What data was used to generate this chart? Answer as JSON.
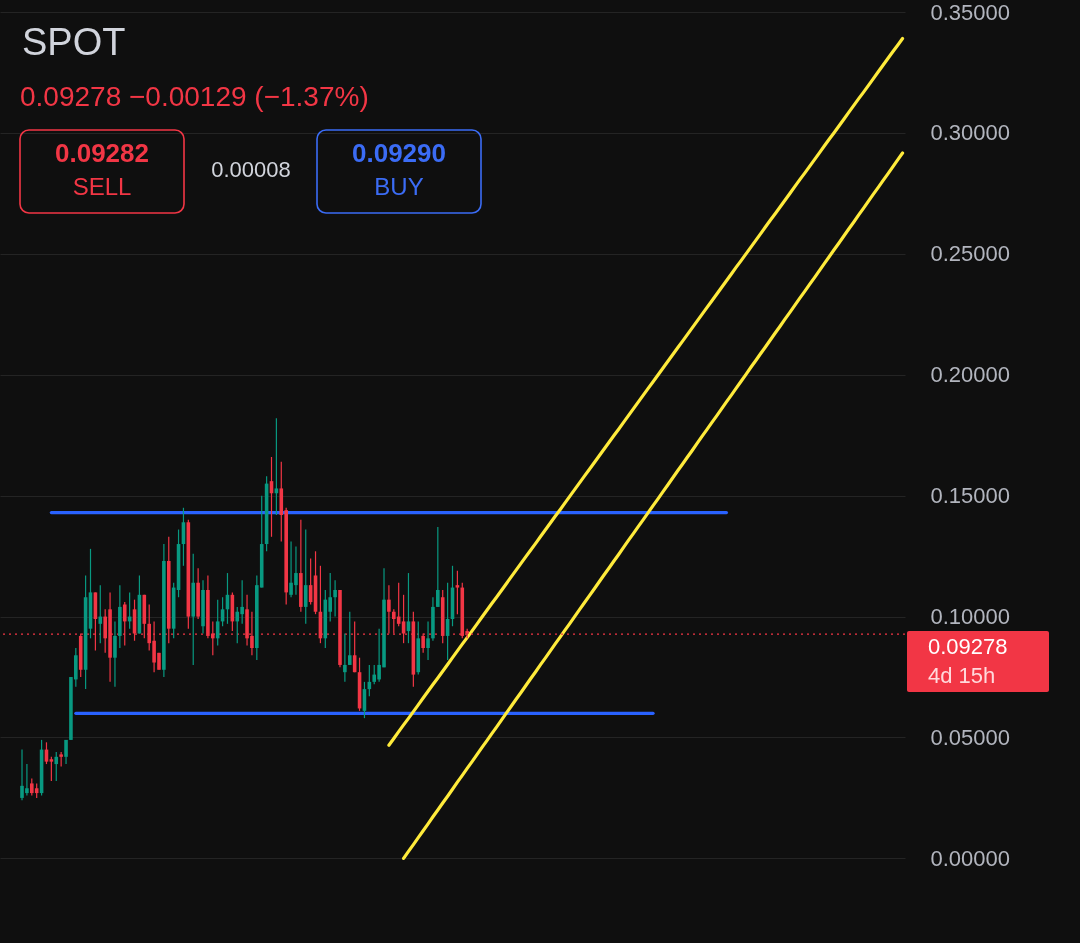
{
  "chart_data": {
    "type": "candlestick",
    "title": "SPOT",
    "subtitle": "0.09278  −0.00129 (−1.37%)",
    "categories": [
      null,
      null,
      null,
      null,
      null,
      null,
      null,
      null,
      null,
      null,
      null,
      null,
      null,
      null,
      null,
      null,
      null,
      null,
      null,
      null,
      null,
      null,
      null,
      null,
      null,
      null,
      null,
      null,
      null,
      null,
      null,
      null,
      null,
      null,
      null,
      null,
      null,
      null,
      null,
      null,
      null,
      null,
      null,
      null,
      null,
      null,
      null,
      null,
      null,
      null,
      null,
      null,
      null,
      null,
      null,
      null,
      null,
      null,
      null,
      null,
      null,
      null,
      null,
      null,
      null,
      null,
      null,
      null,
      null,
      null,
      null,
      null,
      null,
      null,
      null,
      null,
      null,
      null,
      null,
      null,
      null,
      null,
      null,
      null,
      null,
      null,
      null,
      null,
      null,
      null,
      null,
      null,
      null,
      null,
      null,
      null,
      null,
      null,
      null,
      null,
      null,
      null,
      null,
      null,
      null,
      null,
      null,
      null,
      null,
      null,
      null,
      null,
      null,
      null,
      null,
      null,
      null,
      null,
      null,
      null,
      null,
      null,
      null,
      null,
      null,
      null,
      null,
      null,
      null,
      null,
      null,
      null,
      null,
      null,
      null,
      null,
      null,
      null,
      null,
      null,
      null,
      null,
      null,
      null,
      null,
      null,
      null,
      null,
      null,
      null,
      null,
      null,
      null,
      null,
      null,
      null,
      null,
      null,
      null,
      null,
      null,
      null,
      null,
      null,
      null,
      null,
      null,
      null,
      null,
      null,
      null,
      null,
      null,
      null,
      null,
      null,
      null,
      null,
      null,
      null,
      null,
      null,
      null,
      null,
      null
    ],
    "ohlc": [
      null,
      null,
      null,
      null,
      [
        0.025,
        0.045,
        0.024,
        0.03
      ],
      [
        0.027,
        0.039,
        0.026,
        0.029
      ],
      [
        0.031,
        0.033,
        0.026,
        0.027
      ],
      [
        0.029,
        0.031,
        0.025,
        0.027
      ],
      [
        0.027,
        0.049,
        0.026,
        0.045
      ],
      [
        0.045,
        0.048,
        0.039,
        0.04
      ],
      [
        0.041,
        0.042,
        0.032,
        0.04
      ],
      [
        0.039,
        0.044,
        0.032,
        0.042
      ],
      [
        0.043,
        0.044,
        0.038,
        0.042
      ],
      [
        0.042,
        0.049,
        0.039,
        0.049
      ],
      [
        0.049,
        0.075,
        0.049,
        0.075
      ],
      [
        0.074,
        0.087,
        0.071,
        0.084
      ],
      [
        0.092,
        0.093,
        0.075,
        0.078
      ],
      [
        0.078,
        0.117,
        0.07,
        0.108
      ],
      [
        0.095,
        0.128,
        0.091,
        0.11
      ],
      [
        0.11,
        0.11,
        0.086,
        0.099
      ],
      [
        0.097,
        0.113,
        0.089,
        0.1
      ],
      [
        0.1,
        0.103,
        0.085,
        0.091
      ],
      [
        0.103,
        0.11,
        0.073,
        0.083
      ],
      [
        0.083,
        0.098,
        0.071,
        0.092
      ],
      [
        0.092,
        0.113,
        0.087,
        0.104
      ],
      [
        0.105,
        0.106,
        0.088,
        0.098
      ],
      [
        0.098,
        0.11,
        0.095,
        0.1
      ],
      [
        0.103,
        0.107,
        0.09,
        0.093
      ],
      [
        0.093,
        0.117,
        0.093,
        0.109
      ],
      [
        0.109,
        0.109,
        0.091,
        0.097
      ],
      [
        0.097,
        0.105,
        0.086,
        0.089
      ],
      [
        0.09,
        0.098,
        0.077,
        0.081
      ],
      [
        0.085,
        0.085,
        0.078,
        0.078
      ],
      [
        0.078,
        0.13,
        0.075,
        0.123
      ],
      [
        0.123,
        0.133,
        0.089,
        0.095
      ],
      [
        0.095,
        0.114,
        0.091,
        0.112
      ],
      [
        0.111,
        0.136,
        0.108,
        0.13
      ],
      [
        0.13,
        0.145,
        0.121,
        0.139
      ],
      [
        0.139,
        0.14,
        0.095,
        0.1
      ],
      [
        0.1,
        0.126,
        0.08,
        0.114
      ],
      [
        0.114,
        0.12,
        0.099,
        0.1
      ],
      [
        0.096,
        0.115,
        0.093,
        0.111
      ],
      [
        0.111,
        0.117,
        0.091,
        0.092
      ],
      [
        0.093,
        0.098,
        0.084,
        0.091
      ],
      [
        0.091,
        0.107,
        0.088,
        0.098
      ],
      [
        0.098,
        0.108,
        0.096,
        0.103
      ],
      [
        0.103,
        0.118,
        0.097,
        0.109
      ],
      [
        0.109,
        0.11,
        0.094,
        0.098
      ],
      [
        0.098,
        0.104,
        0.089,
        0.102
      ],
      [
        0.101,
        0.115,
        0.097,
        0.104
      ],
      [
        0.103,
        0.109,
        0.088,
        0.091
      ],
      [
        0.092,
        0.102,
        0.084,
        0.087
      ],
      [
        0.087,
        0.117,
        0.082,
        0.113
      ],
      [
        0.112,
        0.15,
        0.112,
        0.13
      ],
      [
        0.13,
        0.158,
        0.127,
        0.155
      ],
      [
        0.156,
        0.166,
        0.133,
        0.151
      ],
      [
        0.151,
        0.182,
        0.142,
        0.153
      ],
      [
        0.153,
        0.164,
        0.131,
        0.142
      ],
      [
        0.144,
        0.145,
        0.105,
        0.11
      ],
      [
        0.109,
        0.131,
        0.108,
        0.114
      ],
      [
        0.113,
        0.129,
        0.109,
        0.118
      ],
      [
        0.118,
        0.14,
        0.102,
        0.104
      ],
      [
        0.104,
        0.136,
        0.097,
        0.113
      ],
      [
        0.113,
        0.124,
        0.105,
        0.106
      ],
      [
        0.117,
        0.127,
        0.101,
        0.102
      ],
      [
        0.102,
        0.121,
        0.089,
        0.091
      ],
      [
        0.091,
        0.111,
        0.087,
        0.107
      ],
      [
        0.102,
        0.118,
        0.098,
        0.108
      ],
      [
        0.108,
        0.115,
        0.1,
        0.111
      ],
      [
        0.111,
        0.111,
        0.079,
        0.08
      ],
      [
        0.077,
        0.093,
        0.073,
        0.08
      ],
      [
        0.08,
        0.102,
        0.08,
        0.084
      ],
      [
        0.084,
        0.098,
        0.077,
        0.077
      ],
      [
        0.077,
        0.083,
        0.061,
        0.062
      ],
      [
        0.061,
        0.073,
        0.058,
        0.07
      ],
      [
        0.07,
        0.08,
        0.067,
        0.073
      ],
      [
        0.073,
        0.08,
        0.072,
        0.076
      ],
      [
        0.074,
        0.095,
        0.073,
        0.08
      ],
      [
        0.079,
        0.12,
        0.079,
        0.107
      ],
      [
        0.107,
        0.113,
        0.093,
        0.102
      ],
      [
        0.102,
        0.103,
        0.093,
        0.099
      ],
      [
        0.1,
        0.114,
        0.096,
        0.097
      ],
      [
        0.098,
        0.109,
        0.089,
        0.093
      ],
      [
        0.094,
        0.118,
        0.089,
        0.098
      ],
      [
        0.098,
        0.102,
        0.071,
        0.076
      ],
      [
        0.077,
        0.098,
        0.076,
        0.091
      ],
      [
        0.092,
        0.093,
        0.085,
        0.087
      ],
      [
        0.087,
        0.098,
        0.082,
        0.091
      ],
      [
        0.091,
        0.108,
        0.09,
        0.104
      ],
      [
        0.104,
        0.137,
        0.104,
        0.111
      ],
      [
        0.108,
        0.111,
        0.089,
        0.092
      ],
      [
        0.092,
        0.114,
        0.082,
        0.099
      ],
      [
        0.099,
        0.121,
        0.096,
        0.112
      ],
      [
        0.113,
        0.119,
        0.101,
        0.112
      ],
      [
        0.112,
        0.114,
        0.091,
        0.092
      ],
      [
        0.094,
        0.095,
        0.091,
        0.093
      ],
      null,
      null,
      null,
      null,
      null,
      null,
      null,
      null,
      null,
      null,
      null,
      null,
      null,
      null,
      null,
      null,
      null,
      null,
      null,
      null,
      null,
      null,
      null,
      null,
      null,
      null,
      null,
      null,
      null,
      null,
      null,
      null,
      null,
      null,
      null,
      null,
      null,
      null,
      null,
      null,
      null,
      null,
      null,
      null,
      null,
      null,
      null,
      null,
      null,
      null,
      null,
      null,
      null,
      null,
      null,
      null,
      null,
      null,
      null,
      null,
      null,
      null,
      null,
      null,
      null,
      null,
      null,
      null,
      null,
      null,
      null,
      null,
      null,
      null,
      null,
      null,
      null,
      null,
      null,
      null,
      null,
      null,
      null,
      null,
      null,
      null,
      null,
      null,
      null
    ],
    "colors": [
      null,
      null,
      null,
      null,
      "#089981",
      "#089981",
      "#f23645",
      "#f23645",
      "#089981",
      "#f23645",
      "#f23645",
      "#089981",
      "#f23645",
      "#089981",
      "#089981",
      "#089981",
      "#f23645",
      "#089981",
      "#089981",
      "#f23645",
      "#089981",
      "#f23645",
      "#f23645",
      "#089981",
      "#089981",
      "#f23645",
      "#089981",
      "#f23645",
      "#089981",
      "#f23645",
      "#f23645",
      "#f23645",
      "#f23645",
      "#089981",
      "#f23645",
      "#089981",
      "#089981",
      "#089981",
      "#f23645",
      "#089981",
      "#f23645",
      "#089981",
      "#f23645",
      "#f23645",
      "#089981",
      "#089981",
      "#089981",
      "#f23645",
      "#089981",
      "#089981",
      "#f23645",
      "#f23645",
      "#089981",
      "#089981",
      "#089981",
      "#f23645",
      "#089981",
      "#f23645",
      "#f23645",
      "#089981",
      "#089981",
      "#f23645",
      "#089981",
      "#f23645",
      "#f23645",
      "#f23645",
      "#089981",
      "#089981",
      "#089981",
      "#f23645",
      "#089981",
      "#089981",
      "#f23645",
      "#f23645",
      "#089981",
      "#089981",
      "#089981",
      "#089981",
      "#089981",
      "#f23645",
      "#f23645",
      "#f23645",
      "#f23645",
      "#089981",
      "#f23645",
      "#089981",
      "#f23645",
      "#089981",
      "#089981",
      "#089981",
      "#f23645",
      "#089981",
      "#089981",
      "#f23645",
      "#f23645",
      "#f23645",
      null,
      null,
      null,
      null,
      null,
      null,
      null,
      null,
      null,
      null,
      null,
      null,
      null,
      null,
      null,
      null,
      null,
      null,
      null,
      null,
      null,
      null,
      null,
      null,
      null,
      null,
      null,
      null,
      null,
      null,
      null,
      null,
      null,
      null,
      null,
      null,
      null,
      null,
      null,
      null,
      null,
      null,
      null,
      null,
      null,
      null,
      null,
      null,
      null,
      null,
      null,
      null,
      null,
      null,
      null,
      null,
      null,
      null,
      null,
      null,
      null,
      null,
      null,
      null,
      null,
      null,
      null,
      null,
      null,
      null,
      null,
      null,
      null,
      null,
      null,
      null,
      null,
      null,
      null,
      null,
      null,
      null,
      null,
      null,
      null,
      null,
      null,
      null,
      null
    ],
    "series": [
      {
        "type": "line",
        "color": "#2962ff",
        "values": [
          null,
          null,
          null,
          null,
          null,
          null,
          null,
          null,
          null,
          null,
          0.143,
          0.143,
          0.143,
          0.143,
          0.143,
          0.143,
          0.143,
          0.143,
          0.143,
          0.143,
          0.143,
          0.143,
          0.143,
          0.143,
          0.143,
          0.143,
          0.143,
          0.143,
          0.143,
          0.143,
          0.143,
          0.143,
          0.143,
          0.143,
          0.143,
          0.143,
          0.143,
          0.143,
          0.143,
          0.143,
          0.143,
          0.143,
          0.143,
          0.143,
          0.143,
          0.143,
          0.143,
          0.143,
          0.143,
          0.143,
          0.143,
          0.143,
          0.143,
          0.143,
          0.143,
          0.143,
          0.143,
          0.143,
          0.143,
          0.143,
          0.143,
          0.143,
          0.143,
          0.143,
          0.143,
          0.143,
          0.143,
          0.143,
          0.143,
          0.143,
          0.143,
          0.143,
          0.143,
          0.143,
          0.143,
          0.143,
          0.143,
          0.143,
          0.143,
          0.143,
          0.143,
          0.143,
          0.143,
          0.143,
          0.143,
          0.143,
          0.143,
          0.143,
          0.143,
          0.143,
          0.143,
          0.143,
          0.143,
          0.143,
          0.143,
          0.143,
          0.143,
          0.143,
          0.143,
          0.143,
          0.143,
          0.143,
          0.143,
          0.143,
          0.143,
          0.143,
          0.143,
          0.143,
          0.143,
          0.143,
          0.143,
          0.143,
          0.143,
          0.143,
          0.143,
          0.143,
          0.143,
          0.143,
          0.143,
          0.143,
          0.143,
          0.143,
          0.143,
          0.143,
          0.143,
          0.143,
          0.143,
          0.143,
          0.143,
          0.143,
          0.143,
          0.143,
          0.143,
          0.143,
          0.143,
          0.143,
          0.143,
          0.143,
          0.143,
          0.143,
          0.143,
          0.143,
          0.143,
          0.143,
          0.143,
          0.143,
          0.143,
          0.143,
          0.143,
          null,
          null,
          null,
          null,
          null,
          null,
          null,
          null,
          null,
          null,
          null,
          null,
          null,
          null,
          null,
          null,
          null,
          null,
          null,
          null,
          null,
          null,
          null,
          null,
          null,
          null,
          null,
          null,
          null,
          null,
          null,
          null,
          null,
          null,
          null,
          null
        ]
      },
      {
        "type": "line",
        "color": "#2962ff",
        "values": [
          null,
          null,
          null,
          null,
          null,
          null,
          null,
          null,
          null,
          null,
          null,
          null,
          null,
          null,
          null,
          0.06,
          0.06,
          0.06,
          0.06,
          0.06,
          0.06,
          0.06,
          0.06,
          0.06,
          0.06,
          0.06,
          0.06,
          0.06,
          0.06,
          0.06,
          0.06,
          0.06,
          0.06,
          0.06,
          0.06,
          0.06,
          0.06,
          0.06,
          0.06,
          0.06,
          0.06,
          0.06,
          0.06,
          0.06,
          0.06,
          0.06,
          0.06,
          0.06,
          0.06,
          0.06,
          0.06,
          0.06,
          0.06,
          0.06,
          0.06,
          0.06,
          0.06,
          0.06,
          0.06,
          0.06,
          0.06,
          0.06,
          0.06,
          0.06,
          0.06,
          0.06,
          0.06,
          0.06,
          0.06,
          0.06,
          0.06,
          0.06,
          0.06,
          0.06,
          0.06,
          0.06,
          0.06,
          0.06,
          0.06,
          0.06,
          0.06,
          0.06,
          0.06,
          0.06,
          0.06,
          0.06,
          0.06,
          0.06,
          0.06,
          0.06,
          0.06,
          0.06,
          0.06,
          0.06,
          0.06,
          0.06,
          0.06,
          0.06,
          0.06,
          0.06,
          0.06,
          0.06,
          0.06,
          0.06,
          0.06,
          0.06,
          0.06,
          0.06,
          0.06,
          0.06,
          0.06,
          0.06,
          0.06,
          0.06,
          0.06,
          0.06,
          0.06,
          0.06,
          0.06,
          0.06,
          0.06,
          0.06,
          0.06,
          0.06,
          0.06,
          0.06,
          0.06,
          0.06,
          0.06,
          0.06,
          0.06,
          0.06,
          0.06,
          0.06,
          null,
          null,
          null,
          null,
          null,
          null,
          null,
          null,
          null,
          null,
          null,
          null,
          null,
          null,
          null,
          null,
          null,
          null,
          null,
          null,
          null,
          null,
          null,
          null,
          null,
          null,
          null,
          null,
          null,
          null,
          null,
          null,
          null,
          null,
          null,
          null,
          null,
          null,
          null,
          null,
          null,
          null,
          null,
          null,
          null,
          null,
          null,
          null,
          null,
          null,
          null
        ]
      },
      {
        "type": "line",
        "color": "#ffeb3b",
        "values": [
          null,
          null,
          null,
          null,
          null,
          null,
          null,
          null,
          null,
          null,
          null,
          null,
          null,
          null,
          null,
          null,
          null,
          null,
          null,
          null,
          null,
          null,
          null,
          null,
          null,
          null,
          null,
          null,
          null,
          null,
          null,
          null,
          null,
          null,
          null,
          null,
          null,
          null,
          null,
          null,
          null,
          null,
          null,
          null,
          null,
          null,
          null,
          null,
          null,
          null,
          null,
          null,
          null,
          null,
          null,
          null,
          null,
          null,
          null,
          null,
          null,
          null,
          null,
          null,
          null,
          null,
          null,
          null,
          null,
          null,
          null,
          null,
          null,
          null,
          null,
          null,
          null,
          null,
          null,
          0.0468,
          0.0496,
          0.0524,
          0.0552,
          0.0579,
          0.0607,
          0.0635,
          0.0663,
          0.0691,
          0.0719,
          0.0746,
          0.0774,
          0.0802,
          0.083,
          0.0858,
          0.0886,
          0.0913,
          0.0941,
          0.0969,
          0.0997,
          0.1025,
          0.1053,
          0.108,
          0.1108,
          0.1136,
          0.1164,
          0.1192,
          0.122,
          0.1248,
          0.1275,
          0.1303,
          0.1331,
          0.1359,
          0.1387,
          0.1415,
          0.1442,
          0.147,
          0.1498,
          0.1526,
          0.1554,
          0.1582,
          0.1609,
          0.1637,
          0.1665,
          0.1693,
          0.1721,
          0.1749,
          0.1776,
          0.1804,
          0.1832,
          0.186,
          0.1888,
          0.1916,
          0.1944,
          0.1971,
          0.1999,
          0.2027,
          0.2055,
          0.2083,
          0.2111,
          0.2138,
          0.2166,
          0.2194,
          0.2222,
          0.225,
          0.2278,
          0.2305,
          0.2333,
          0.2361,
          0.2389,
          0.2417,
          0.2445,
          0.2472,
          0.25,
          0.2528,
          0.2556,
          0.2584,
          0.2612,
          0.264,
          0.2667,
          0.2695,
          0.2723,
          0.2751,
          0.2779,
          0.2807,
          0.2834,
          0.2862,
          0.289,
          0.2918,
          0.2946,
          0.2974,
          0.3001,
          0.3029,
          0.3057,
          0.3085,
          0.3113,
          0.3141,
          0.3168,
          0.3196,
          0.3224,
          0.3252,
          0.328,
          0.3308,
          0.3336,
          0.3363,
          0.3391
        ]
      },
      {
        "type": "line",
        "color": "#ffeb3b",
        "values": [
          null,
          null,
          null,
          null,
          null,
          null,
          null,
          null,
          null,
          null,
          null,
          null,
          null,
          null,
          null,
          null,
          null,
          null,
          null,
          null,
          null,
          null,
          null,
          null,
          null,
          null,
          null,
          null,
          null,
          null,
          null,
          null,
          null,
          null,
          null,
          null,
          null,
          null,
          null,
          null,
          null,
          null,
          null,
          null,
          null,
          null,
          null,
          null,
          null,
          null,
          null,
          null,
          null,
          null,
          null,
          null,
          null,
          null,
          null,
          null,
          null,
          null,
          null,
          null,
          null,
          null,
          null,
          null,
          null,
          null,
          null,
          null,
          null,
          null,
          null,
          null,
          null,
          null,
          null,
          null,
          null,
          null,
          0.0,
          0.0029,
          0.0057,
          0.0086,
          0.0114,
          0.0143,
          0.0172,
          0.02,
          0.0229,
          0.0257,
          0.0286,
          0.0315,
          0.0343,
          0.0372,
          0.04,
          0.0429,
          0.0458,
          0.0486,
          0.0515,
          0.0543,
          0.0572,
          0.0601,
          0.0629,
          0.0658,
          0.0686,
          0.0715,
          0.0744,
          0.0772,
          0.0801,
          0.0829,
          0.0858,
          0.0887,
          0.0915,
          0.0944,
          0.0972,
          0.1001,
          0.103,
          0.1058,
          0.1087,
          0.1115,
          0.1144,
          0.1173,
          0.1201,
          0.123,
          0.1258,
          0.1287,
          0.1316,
          0.1344,
          0.1373,
          0.1401,
          0.143,
          0.1459,
          0.1487,
          0.1516,
          0.1544,
          0.1573,
          0.1602,
          0.163,
          0.1659,
          0.1687,
          0.1716,
          0.1745,
          0.1773,
          0.1802,
          0.183,
          0.1859,
          0.1888,
          0.1916,
          0.1945,
          0.1973,
          0.2002,
          0.2031,
          0.2059,
          0.2088,
          0.2116,
          0.2145,
          0.2174,
          0.2202,
          0.2231,
          0.2259,
          0.2288,
          0.2317,
          0.2345,
          0.2374,
          0.2402,
          0.2431,
          0.246,
          0.2488,
          0.2517,
          0.2545,
          0.2574,
          0.2603,
          0.2631,
          0.266,
          0.2688,
          0.2717,
          0.2746,
          0.2774,
          0.2803,
          0.2831,
          0.286,
          0.2889,
          0.2917
        ]
      }
    ],
    "ylim": [
      -0.035,
      0.355
    ],
    "yticks": [
      {
        "value": 0,
        "label": "0.00000"
      },
      {
        "value": 0.05,
        "label": "0.05000"
      },
      {
        "value": 0.1,
        "label": "0.10000"
      },
      {
        "value": 0.15,
        "label": "0.15000"
      },
      {
        "value": 0.2,
        "label": "0.20000"
      },
      {
        "value": 0.25,
        "label": "0.25000"
      },
      {
        "value": 0.3,
        "label": "0.30000"
      },
      {
        "value": 0.35,
        "label": "0.35000"
      }
    ],
    "tick_labels": "y",
    "grid": "y",
    "ref_lines": [
      {
        "axis": "y",
        "value": 0.09278,
        "label": "0.09278",
        "color": "#f23645",
        "line_style": "dotted"
      }
    ],
    "annotations": [
      "0.09282",
      "SELL",
      "0.00008",
      "0.09290",
      "BUY",
      "4d 15h"
    ]
  }
}
